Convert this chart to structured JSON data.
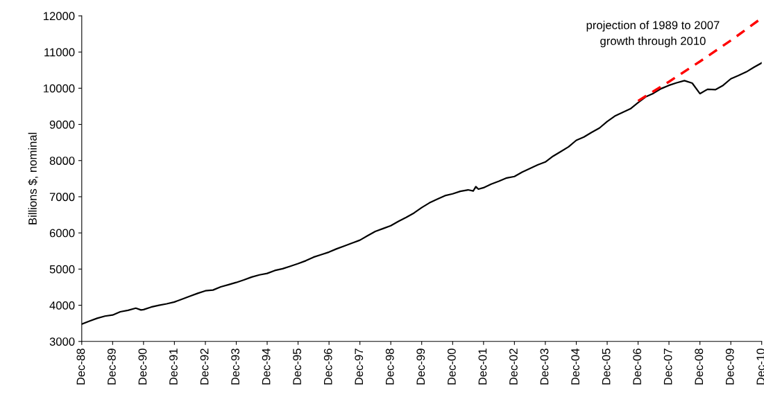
{
  "chart_data": {
    "type": "line",
    "ylabel": "Billions $, nominal",
    "annotations": [
      "projection of 1989 to 2007\ngrowth through 2010"
    ],
    "ylim": [
      3000,
      12000
    ],
    "yticks": [
      3000,
      4000,
      5000,
      6000,
      7000,
      8000,
      9000,
      10000,
      11000,
      12000
    ],
    "xlim": [
      "1988-12",
      "2010-12"
    ],
    "xticks": [
      {
        "value": "1988-12",
        "label": "Dec-88"
      },
      {
        "value": "1989-12",
        "label": "Dec-89"
      },
      {
        "value": "1990-12",
        "label": "Dec-90"
      },
      {
        "value": "1991-12",
        "label": "Dec-91"
      },
      {
        "value": "1992-12",
        "label": "Dec-92"
      },
      {
        "value": "1993-12",
        "label": "Dec-93"
      },
      {
        "value": "1994-12",
        "label": "Dec-94"
      },
      {
        "value": "1995-12",
        "label": "Dec-95"
      },
      {
        "value": "1996-12",
        "label": "Dec-96"
      },
      {
        "value": "1997-12",
        "label": "Dec-97"
      },
      {
        "value": "1998-12",
        "label": "Dec-98"
      },
      {
        "value": "1999-12",
        "label": "Dec-99"
      },
      {
        "value": "2000-12",
        "label": "Dec-00"
      },
      {
        "value": "2001-12",
        "label": "Dec-01"
      },
      {
        "value": "2002-12",
        "label": "Dec-02"
      },
      {
        "value": "2003-12",
        "label": "Dec-03"
      },
      {
        "value": "2004-12",
        "label": "Dec-04"
      },
      {
        "value": "2005-12",
        "label": "Dec-05"
      },
      {
        "value": "2006-12",
        "label": "Dec-06"
      },
      {
        "value": "2007-12",
        "label": "Dec-07"
      },
      {
        "value": "2008-12",
        "label": "Dec-08"
      },
      {
        "value": "2009-12",
        "label": "Dec-09"
      },
      {
        "value": "2010-12",
        "label": "Dec-10"
      }
    ],
    "grid": false,
    "legend": false,
    "marker": "none",
    "series": [
      {
        "color": "#000000",
        "line_style": "solid",
        "x": [
          "1988-12",
          "1989-03",
          "1989-06",
          "1989-09",
          "1989-12",
          "1990-03",
          "1990-06",
          "1990-09",
          "1990-11",
          "1990-12",
          "1991-03",
          "1991-06",
          "1991-09",
          "1991-12",
          "1992-03",
          "1992-06",
          "1992-09",
          "1992-12",
          "1993-03",
          "1993-06",
          "1993-09",
          "1993-12",
          "1994-03",
          "1994-06",
          "1994-09",
          "1994-12",
          "1995-03",
          "1995-06",
          "1995-09",
          "1995-12",
          "1996-03",
          "1996-06",
          "1996-09",
          "1996-12",
          "1997-03",
          "1997-06",
          "1997-09",
          "1997-12",
          "1998-03",
          "1998-06",
          "1998-09",
          "1998-12",
          "1999-03",
          "1999-06",
          "1999-09",
          "1999-12",
          "2000-03",
          "2000-06",
          "2000-09",
          "2000-12",
          "2001-03",
          "2001-06",
          "2001-08",
          "2001-09",
          "2001-10",
          "2001-12",
          "2002-03",
          "2002-06",
          "2002-09",
          "2002-12",
          "2003-03",
          "2003-06",
          "2003-09",
          "2003-12",
          "2004-03",
          "2004-06",
          "2004-09",
          "2004-12",
          "2005-03",
          "2005-06",
          "2005-09",
          "2005-12",
          "2006-03",
          "2006-06",
          "2006-09",
          "2006-12",
          "2007-03",
          "2007-06",
          "2007-09",
          "2007-12",
          "2008-03",
          "2008-06",
          "2008-09",
          "2008-12",
          "2009-03",
          "2009-06",
          "2009-09",
          "2009-12",
          "2010-03",
          "2010-06",
          "2010-09",
          "2010-12"
        ],
        "values": [
          3480,
          3560,
          3640,
          3700,
          3730,
          3820,
          3860,
          3920,
          3870,
          3880,
          3950,
          4000,
          4040,
          4090,
          4170,
          4250,
          4330,
          4400,
          4420,
          4510,
          4570,
          4630,
          4700,
          4780,
          4840,
          4880,
          4960,
          5010,
          5080,
          5150,
          5230,
          5330,
          5400,
          5470,
          5560,
          5640,
          5720,
          5800,
          5920,
          6040,
          6120,
          6200,
          6320,
          6430,
          6550,
          6700,
          6830,
          6930,
          7030,
          7080,
          7150,
          7190,
          7160,
          7280,
          7210,
          7250,
          7350,
          7430,
          7520,
          7560,
          7680,
          7780,
          7880,
          7960,
          8120,
          8250,
          8380,
          8560,
          8650,
          8780,
          8900,
          9080,
          9230,
          9330,
          9430,
          9600,
          9760,
          9860,
          9990,
          10080,
          10150,
          10210,
          10140,
          9850,
          9970,
          9960,
          10080,
          10260,
          10350,
          10450,
          10580,
          10700
        ]
      },
      {
        "color": "#ff0000",
        "line_style": "dashed",
        "x": [
          "2006-12",
          "2007-12",
          "2008-12",
          "2009-12",
          "2010-12"
        ],
        "values": [
          9650,
          10180,
          10740,
          11320,
          11940
        ]
      }
    ]
  }
}
